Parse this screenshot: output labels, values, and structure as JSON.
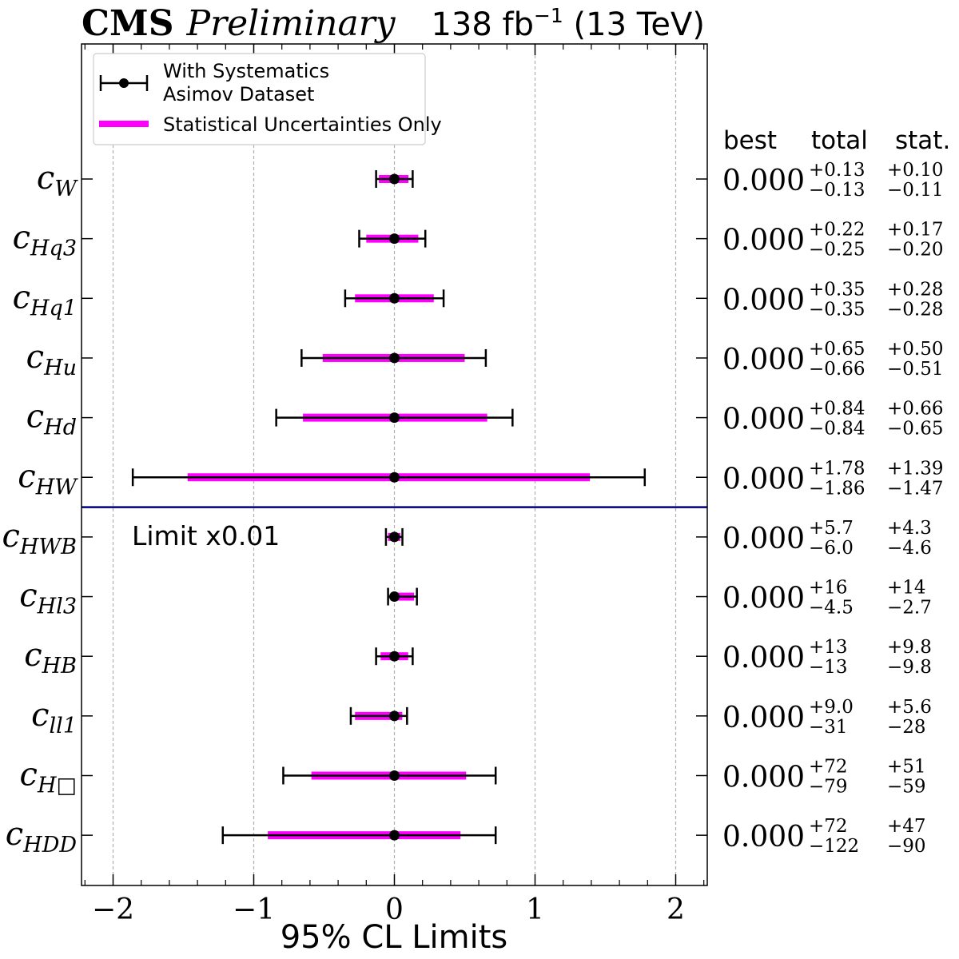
{
  "header": {
    "experiment": "CMS",
    "status": "Preliminary",
    "lumi_prefix": "138 fb",
    "lumi_exp": "−1",
    "lumi_suffix": " (13 TeV)"
  },
  "legend": {
    "syst_line1": "With Systematics",
    "syst_line2": "Asimov Dataset",
    "stat_label": "Statistical Uncertainties Only"
  },
  "columns": {
    "best": "best",
    "total": "total",
    "stat": "stat."
  },
  "note": "Limit x0.01",
  "colors": {
    "stat": "#ff00ff",
    "syst": "#000000",
    "separator": "#000080",
    "grid": "#b0b0b0"
  },
  "chart_data": {
    "type": "errorbar",
    "xlabel": "95% CL Limits",
    "xlim": [
      -2.22,
      2.22
    ],
    "xticks": [
      -2,
      -1,
      0,
      1,
      2
    ],
    "xtick_labels": [
      "−2",
      "−1",
      "0",
      "1",
      "2"
    ],
    "grid": "vertical dashed",
    "legend_position": "top-left",
    "rows": [
      {
        "label": "c",
        "sub": "W",
        "best": 0.0,
        "best_text": "0.000",
        "tot_up": "+0.13",
        "tot_dn": "−0.13",
        "stat_up": "+0.10",
        "stat_dn": "−0.11",
        "syst": [
          -0.13,
          0.13
        ],
        "stat": [
          -0.11,
          0.1
        ]
      },
      {
        "label": "c",
        "sub": "Hq3",
        "best": 0.0,
        "best_text": "0.000",
        "tot_up": "+0.22",
        "tot_dn": "−0.25",
        "stat_up": "+0.17",
        "stat_dn": "−0.20",
        "syst": [
          -0.25,
          0.22
        ],
        "stat": [
          -0.2,
          0.17
        ]
      },
      {
        "label": "c",
        "sub": "Hq1",
        "best": 0.0,
        "best_text": "0.000",
        "tot_up": "+0.35",
        "tot_dn": "−0.35",
        "stat_up": "+0.28",
        "stat_dn": "−0.28",
        "syst": [
          -0.35,
          0.35
        ],
        "stat": [
          -0.28,
          0.28
        ]
      },
      {
        "label": "c",
        "sub": "Hu",
        "best": 0.0,
        "best_text": "0.000",
        "tot_up": "+0.65",
        "tot_dn": "−0.66",
        "stat_up": "+0.50",
        "stat_dn": "−0.51",
        "syst": [
          -0.66,
          0.65
        ],
        "stat": [
          -0.51,
          0.5
        ]
      },
      {
        "label": "c",
        "sub": "Hd",
        "best": 0.0,
        "best_text": "0.000",
        "tot_up": "+0.84",
        "tot_dn": "−0.84",
        "stat_up": "+0.66",
        "stat_dn": "−0.65",
        "syst": [
          -0.84,
          0.84
        ],
        "stat": [
          -0.65,
          0.66
        ]
      },
      {
        "label": "c",
        "sub": "HW",
        "best": 0.0,
        "best_text": "0.000",
        "tot_up": "+1.78",
        "tot_dn": "−1.86",
        "stat_up": "+1.39",
        "stat_dn": "−1.47",
        "syst": [
          -1.86,
          1.78
        ],
        "stat": [
          -1.47,
          1.39
        ]
      },
      {
        "label": "c",
        "sub": "HWB",
        "best": 0.0,
        "best_text": "0.000",
        "tot_up": "+5.7",
        "tot_dn": "−6.0",
        "stat_up": "+4.3",
        "stat_dn": "−4.6",
        "syst": [
          -0.06,
          0.057
        ],
        "stat": [
          -0.046,
          0.043
        ]
      },
      {
        "label": "c",
        "sub": "Hl3",
        "best": 0.0,
        "best_text": "0.000",
        "tot_up": "+16",
        "tot_dn": "−4.5",
        "stat_up": "+14",
        "stat_dn": "−2.7",
        "syst": [
          -0.045,
          0.16
        ],
        "stat": [
          -0.027,
          0.14
        ]
      },
      {
        "label": "c",
        "sub": "HB",
        "best": 0.0,
        "best_text": "0.000",
        "tot_up": "+13",
        "tot_dn": "−13",
        "stat_up": "+9.8",
        "stat_dn": "−9.8",
        "syst": [
          -0.13,
          0.13
        ],
        "stat": [
          -0.098,
          0.098
        ]
      },
      {
        "label": "c",
        "sub": "ll1",
        "best": 0.0,
        "best_text": "0.000",
        "tot_up": "+9.0",
        "tot_dn": "−31",
        "stat_up": "+5.6",
        "stat_dn": "−28",
        "syst": [
          -0.31,
          0.09
        ],
        "stat": [
          -0.28,
          0.056
        ]
      },
      {
        "label": "c",
        "sub": "H□",
        "best": 0.0,
        "best_text": "0.000",
        "tot_up": "+72",
        "tot_dn": "−79",
        "stat_up": "+51",
        "stat_dn": "−59",
        "syst": [
          -0.79,
          0.72
        ],
        "stat": [
          -0.59,
          0.51
        ]
      },
      {
        "label": "c",
        "sub": "HDD",
        "best": 0.0,
        "best_text": "0.000",
        "tot_up": "+72",
        "tot_dn": "−122",
        "stat_up": "+47",
        "stat_dn": "−90",
        "syst": [
          -1.22,
          0.72
        ],
        "stat": [
          -0.9,
          0.47
        ]
      }
    ]
  }
}
